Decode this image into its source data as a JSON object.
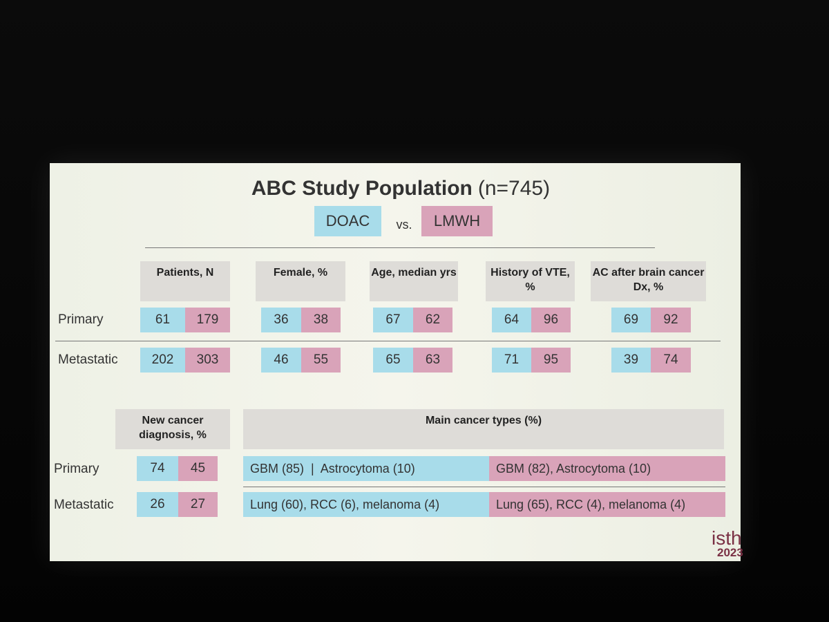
{
  "title": "ABC Study Population",
  "title_n": "(n=745)",
  "legend": {
    "doac": "DOAC",
    "vs": "vs.",
    "lmwh": "LMWH"
  },
  "table1": {
    "headers": [
      "Patients, N",
      "Female, %",
      "Age, median yrs",
      "History of VTE, %",
      "AC after brain cancer Dx, %"
    ],
    "rows": [
      {
        "label": "Primary",
        "values": [
          [
            61,
            179
          ],
          [
            36,
            38
          ],
          [
            67,
            62
          ],
          [
            64,
            96
          ],
          [
            69,
            92
          ]
        ]
      },
      {
        "label": "Metastatic",
        "values": [
          [
            202,
            303
          ],
          [
            46,
            55
          ],
          [
            65,
            63
          ],
          [
            71,
            95
          ],
          [
            39,
            74
          ]
        ]
      }
    ]
  },
  "table2": {
    "headers": [
      "New cancer diagnosis, %",
      "Main cancer types (%)"
    ],
    "rows": [
      {
        "label": "Primary",
        "values": [
          74,
          45
        ],
        "doac_types": "GBM (85)  |  Astrocytoma (10)",
        "lmwh_types": "GBM (82), Astrocytoma (10)"
      },
      {
        "label": "Metastatic",
        "values": [
          26,
          27
        ],
        "doac_types": "Lung (60), RCC (6), melanoma (4)",
        "lmwh_types": "Lung (65), RCC (4), melanoma (4)"
      }
    ]
  },
  "logo": {
    "text": "isth",
    "year": "2023"
  }
}
